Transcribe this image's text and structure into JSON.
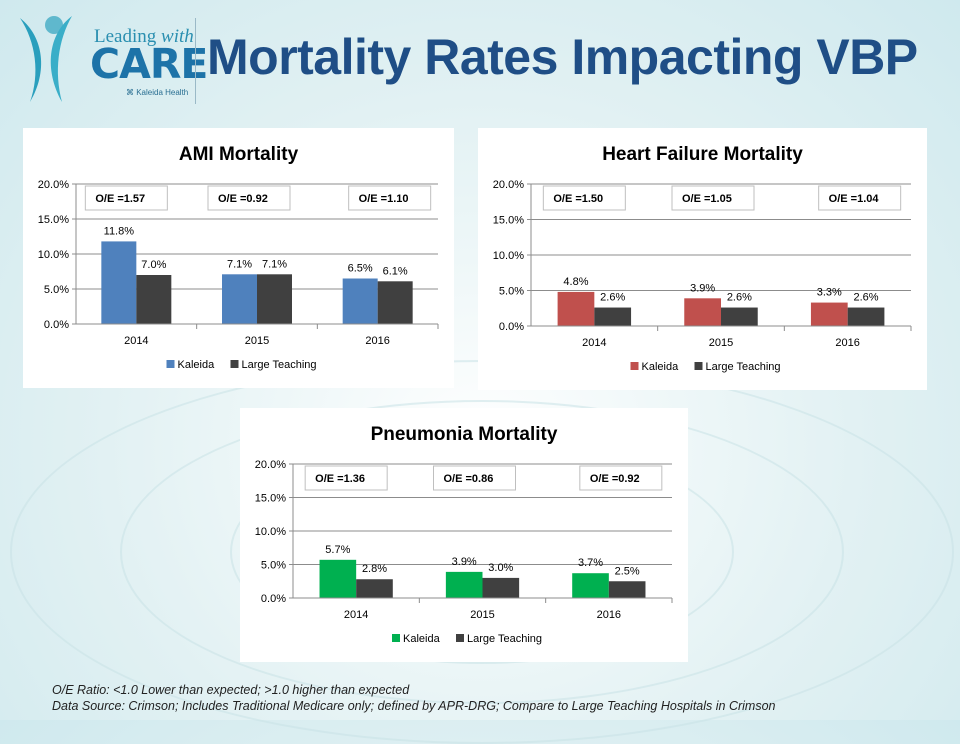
{
  "header": {
    "title": "Mortality Rates Impacting VBP",
    "logo": {
      "line1_regular": "Leading ",
      "line1_italic": "with",
      "line2": "CARE",
      "line3": "⌘ Kaleida Health",
      "icon": "figure-person-icon"
    }
  },
  "colors": {
    "title": "#1f4e86",
    "large_teaching": "#404040",
    "ami_kaleida": "#4f81bd",
    "hf_kaleida": "#c0504d",
    "pneumonia_kaleida": "#00b050"
  },
  "chart_data": [
    {
      "type": "bar",
      "title": "AMI Mortality",
      "categories": [
        "2014",
        "2015",
        "2016"
      ],
      "series": [
        {
          "name": "Kaleida",
          "values": [
            11.8,
            7.1,
            6.5
          ],
          "labels": [
            "11.8%",
            "7.1%",
            "6.5%"
          ]
        },
        {
          "name": "Large Teaching",
          "values": [
            7.0,
            7.1,
            6.1
          ],
          "labels": [
            "7.0%",
            "7.1%",
            "6.1%"
          ]
        }
      ],
      "annotations": [
        "O/E =1.57",
        "O/E =0.92",
        "O/E =1.10"
      ],
      "yticks": [
        "0.0%",
        "5.0%",
        "10.0%",
        "15.0%",
        "20.0%"
      ],
      "ylim": [
        0,
        20
      ],
      "xlabel": "",
      "ylabel": "",
      "grid": true,
      "legend": "bottom"
    },
    {
      "type": "bar",
      "title": "Heart Failure Mortality",
      "categories": [
        "2014",
        "2015",
        "2016"
      ],
      "series": [
        {
          "name": "Kaleida",
          "values": [
            4.8,
            3.9,
            3.3
          ],
          "labels": [
            "4.8%",
            "3.9%",
            "3.3%"
          ]
        },
        {
          "name": "Large Teaching",
          "values": [
            2.6,
            2.6,
            2.6
          ],
          "labels": [
            "2.6%",
            "2.6%",
            "2.6%"
          ]
        }
      ],
      "annotations": [
        "O/E =1.50",
        "O/E =1.05",
        "O/E =1.04"
      ],
      "yticks": [
        "0.0%",
        "5.0%",
        "10.0%",
        "15.0%",
        "20.0%"
      ],
      "ylim": [
        0,
        20
      ],
      "xlabel": "",
      "ylabel": "",
      "grid": true,
      "legend": "bottom"
    },
    {
      "type": "bar",
      "title": "Pneumonia Mortality",
      "categories": [
        "2014",
        "2015",
        "2016"
      ],
      "series": [
        {
          "name": "Kaleida",
          "values": [
            5.7,
            3.9,
            3.7
          ],
          "labels": [
            "5.7%",
            "3.9%",
            "3.7%"
          ]
        },
        {
          "name": "Large Teaching",
          "values": [
            2.8,
            3.0,
            2.5
          ],
          "labels": [
            "2.8%",
            "3.0%",
            "2.5%"
          ]
        }
      ],
      "annotations": [
        "O/E =1.36",
        "O/E =0.86",
        "O/E =0.92"
      ],
      "yticks": [
        "0.0%",
        "5.0%",
        "10.0%",
        "15.0%",
        "20.0%"
      ],
      "ylim": [
        0,
        20
      ],
      "xlabel": "",
      "ylabel": "",
      "grid": true,
      "legend": "bottom"
    }
  ],
  "footnotes": {
    "line1": "O/E  Ratio:  <1.0 Lower than expected; >1.0 higher than expected",
    "line2": "Data Source: Crimson; Includes Traditional Medicare only; defined by APR-DRG; Compare to Large Teaching Hospitals in Crimson"
  }
}
